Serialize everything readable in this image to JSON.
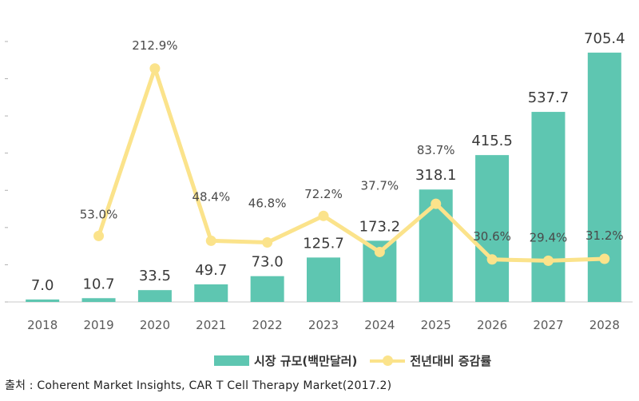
{
  "chart_data": {
    "type": "bar",
    "categories": [
      "2018",
      "2019",
      "2020",
      "2021",
      "2022",
      "2023",
      "2024",
      "2025",
      "2026",
      "2027",
      "2028"
    ],
    "series": [
      {
        "name": "시장 규모(백만달러)",
        "type": "bar",
        "values": [
          7.0,
          10.7,
          33.5,
          49.7,
          73.0,
          125.7,
          173.2,
          318.1,
          415.5,
          537.7,
          705.4
        ],
        "labels": [
          "7.0",
          "10.7",
          "33.5",
          "49.7",
          "73.0",
          "125.7",
          "173.2",
          "318.1",
          "415.5",
          "537.7",
          "705.4"
        ],
        "color": "#5ec6b1"
      },
      {
        "name": "전년대비 증감률",
        "type": "line",
        "values": [
          null,
          53.0,
          212.9,
          48.4,
          46.8,
          72.2,
          37.7,
          83.7,
          30.6,
          29.4,
          31.2
        ],
        "labels": [
          "",
          "53.0%",
          "212.9%",
          "48.4%",
          "46.8%",
          "72.2%",
          "37.7%",
          "83.7%",
          "30.6%",
          "29.4%",
          "31.2%"
        ],
        "color": "#fbe38b"
      }
    ],
    "ylim": [
      0,
      800
    ],
    "ylim_secondary": [
      -10,
      260
    ],
    "legend_position": "bottom"
  },
  "source": "출처 : Coherent Market Insights, CAR T Cell Therapy Market(2017.2)"
}
